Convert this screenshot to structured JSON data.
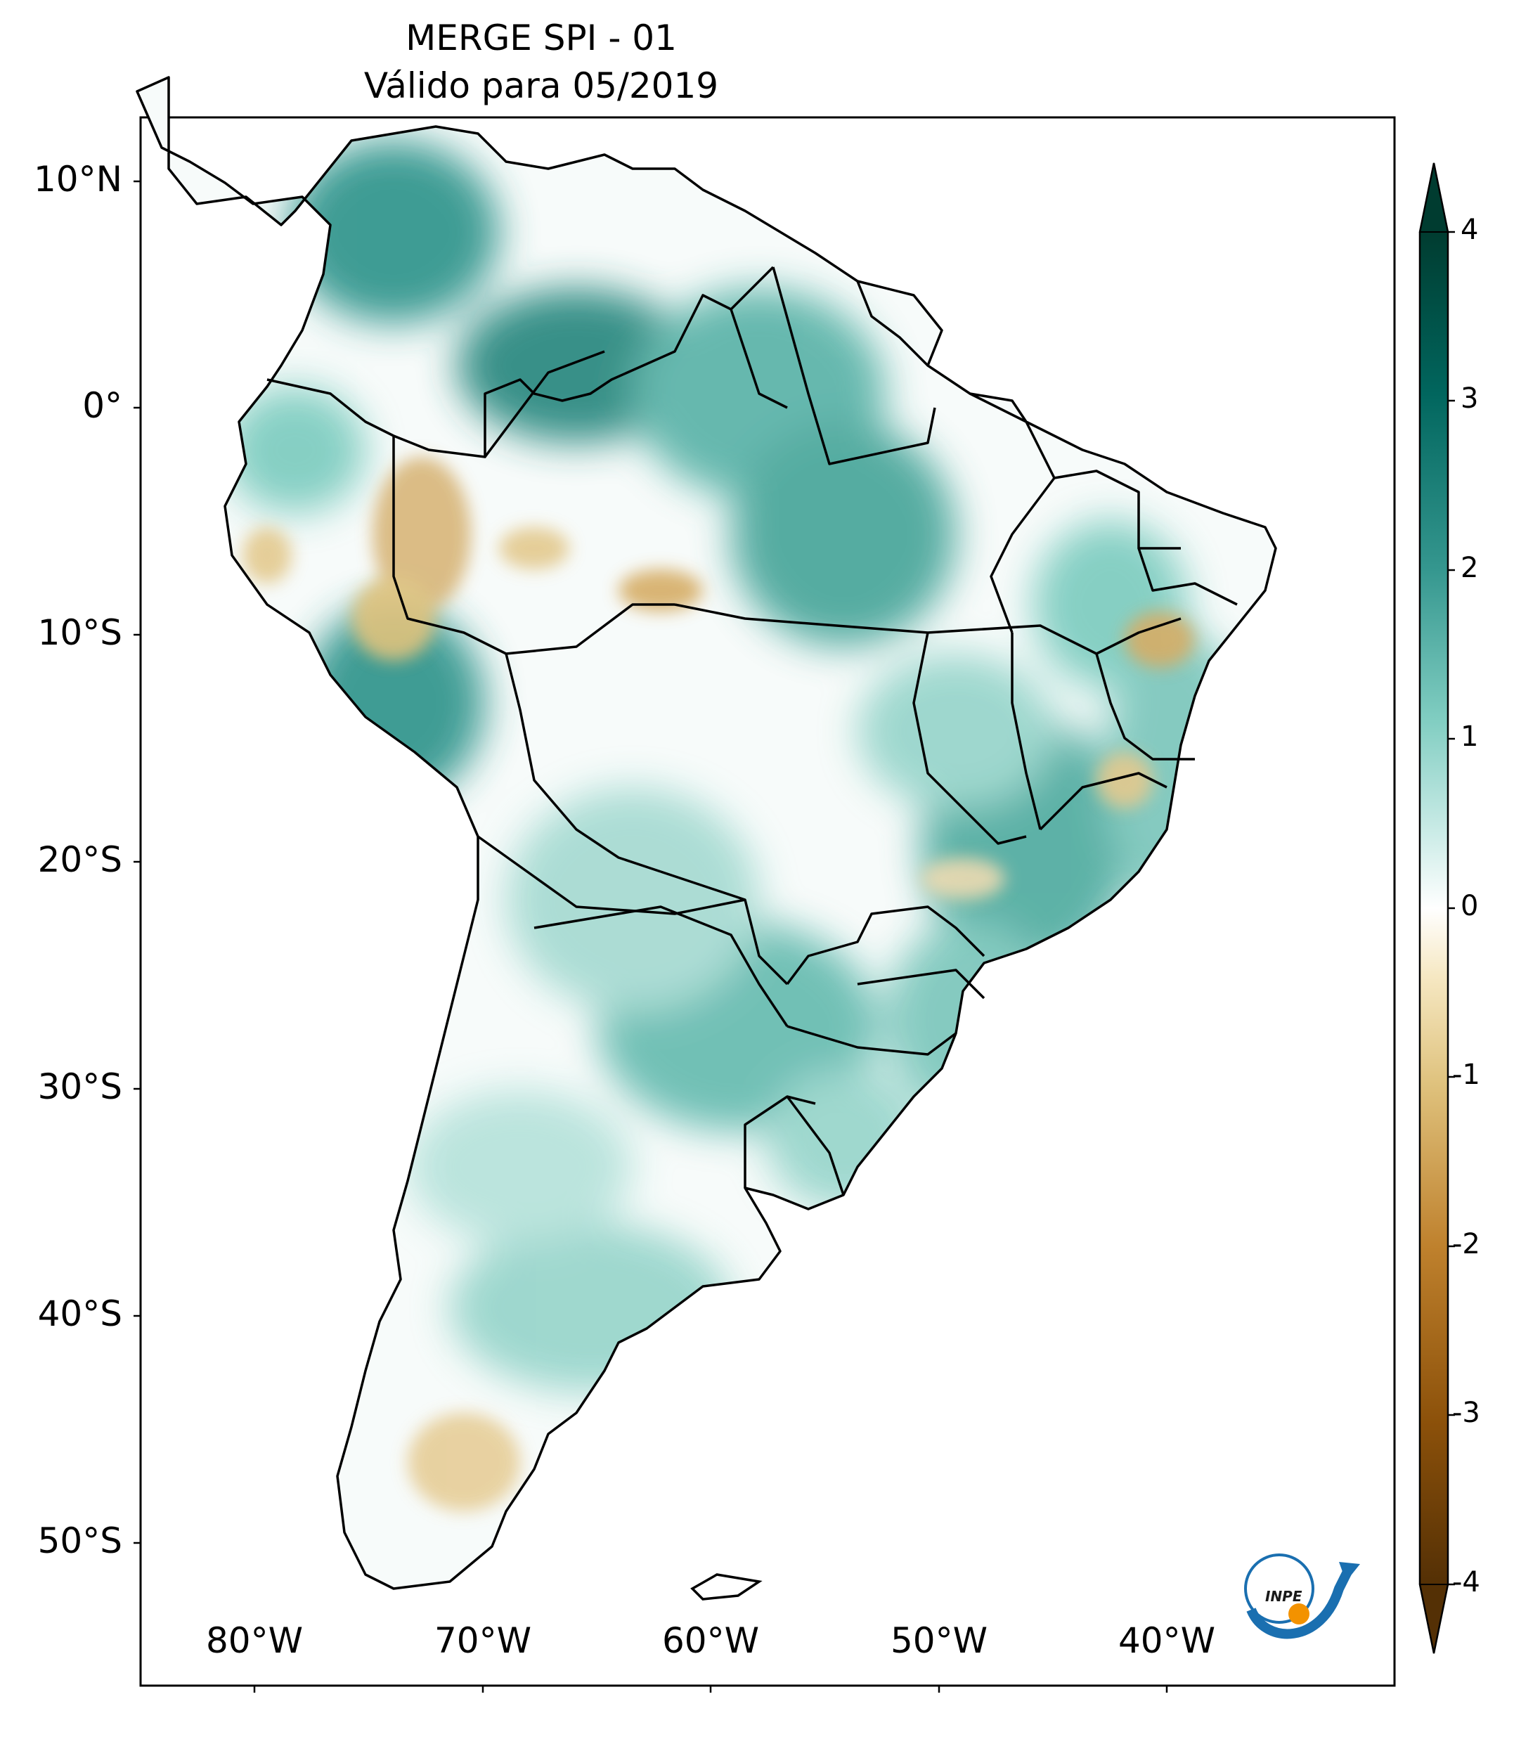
{
  "title": {
    "line1": "MERGE   SPI - 01",
    "line2": "Válido para 05/2019"
  },
  "axes": {
    "lat_ticks": [
      "10°N",
      "0°",
      "10°S",
      "20°S",
      "30°S",
      "40°S",
      "50°S"
    ],
    "lon_ticks": [
      "80°W",
      "70°W",
      "60°W",
      "50°W",
      "40°W"
    ],
    "extent": {
      "lon": [
        -85,
        -30
      ],
      "lat": [
        -56,
        13
      ]
    }
  },
  "colorbar": {
    "labels": [
      "4",
      "3",
      "2",
      "1",
      "0",
      "-1",
      "-2",
      "-3",
      "-4"
    ],
    "range": [
      -4,
      4
    ],
    "extend": "both",
    "colormap": "BrBG",
    "colors": [
      "#543005",
      "#8c510a",
      "#bf812d",
      "#dfc27d",
      "#f6e8c3",
      "#ffffff",
      "#c7eae5",
      "#80cdc1",
      "#35978f",
      "#01665e",
      "#003c30"
    ]
  },
  "logo": {
    "text": "INPE"
  },
  "colors": {
    "wet": "#35978f",
    "dry": "#c9953f",
    "border": "#000000"
  }
}
